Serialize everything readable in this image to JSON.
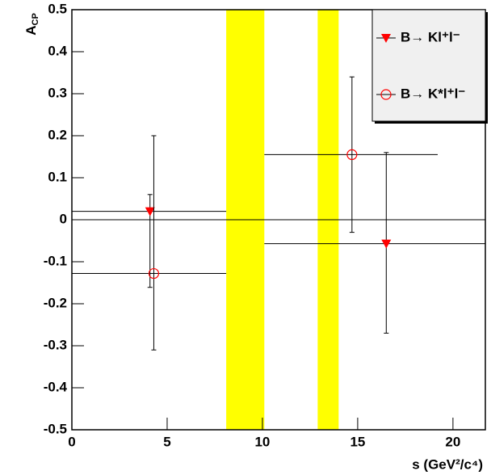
{
  "chart_data": {
    "type": "errorbar",
    "ylabel": [
      "A",
      "CP"
    ],
    "xlabel": "s (GeV²/c⁴)",
    "xlim": [
      0,
      21.7
    ],
    "ylim": [
      -0.5,
      0.5
    ],
    "xticks": [
      0,
      5,
      10,
      15,
      20
    ],
    "yticks": [
      0.5,
      0.4,
      0.3,
      0.2,
      0.1,
      0,
      -0.1,
      -0.2,
      -0.3,
      -0.4,
      -0.5
    ],
    "hline": 0,
    "bands": [
      [
        8.1,
        10.1
      ],
      [
        12.9,
        14.0
      ]
    ],
    "band_color": "#ffff00",
    "series": [
      {
        "name": "B→ Kl⁺l⁻",
        "color": "#ff0000",
        "marker": "triangle",
        "x": [
          4.1,
          16.5
        ],
        "values": [
          0.02,
          -0.057
        ],
        "xlow": [
          0,
          10.1
        ],
        "xhigh": [
          8.1,
          21.7
        ],
        "ylow": [
          -0.161,
          -0.27
        ],
        "yhigh": [
          0.06,
          0.16
        ]
      },
      {
        "name": "B→ K*l⁺l⁻",
        "color": "#ff0000",
        "marker": "circle",
        "x": [
          4.3,
          14.7
        ],
        "values": [
          -0.128,
          0.155
        ],
        "xlow": [
          0,
          10.1
        ],
        "xhigh": [
          8.1,
          19.2
        ],
        "ylow": [
          -0.31,
          -0.03
        ],
        "yhigh": [
          0.2,
          0.34
        ]
      }
    ]
  }
}
